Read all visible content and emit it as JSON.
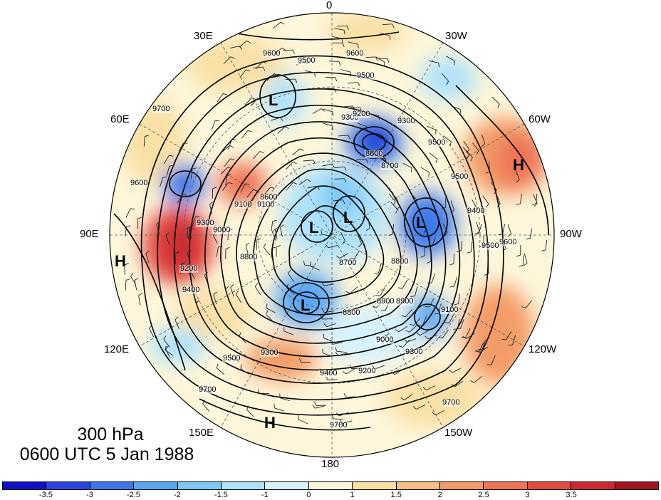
{
  "map": {
    "title_level": "300 hPa",
    "title_time": "0600 UTC 5 Jan 1988",
    "longitude_labels": [
      "0",
      "30W",
      "60W",
      "90W",
      "120W",
      "150W",
      "180",
      "150E",
      "120E",
      "90E",
      "60E",
      "30E"
    ],
    "contour_labels": [
      "9600",
      "9500",
      "9500",
      "9500",
      "9400",
      "9300",
      "9200",
      "9300",
      "9300",
      "9600",
      "9500",
      "9400",
      "9300",
      "9200",
      "9100",
      "9000",
      "8900",
      "8800",
      "8700",
      "8800",
      "8900",
      "9000",
      "9100",
      "9200",
      "9300",
      "9400",
      "9500",
      "9600",
      "9700",
      "9700",
      "9700",
      "9700",
      "9600",
      "9500",
      "8600",
      "8700",
      "8600",
      "8800",
      "9100"
    ],
    "systems": [
      {
        "label": "L",
        "name": "low-scandinavia"
      },
      {
        "label": "L",
        "name": "low-pole-left"
      },
      {
        "label": "L",
        "name": "low-pole-center"
      },
      {
        "label": "L",
        "name": "low-hudson"
      },
      {
        "label": "L",
        "name": "low-siberia"
      },
      {
        "label": "H",
        "name": "high-atlantic"
      },
      {
        "label": "H",
        "name": "high-asia"
      },
      {
        "label": "H",
        "name": "high-pacific"
      }
    ]
  },
  "colorbar": {
    "colors": [
      "#1010c8",
      "#2a44e0",
      "#3c78ea",
      "#5aa6f2",
      "#7ec8f8",
      "#aee2fb",
      "#d6f2fc",
      "#fdf6da",
      "#f9e0a6",
      "#f6c084",
      "#f39c68",
      "#ee7456",
      "#e34a42",
      "#cc2a30",
      "#a41420"
    ],
    "tick_labels": [
      "-3.5",
      "-3",
      "-2.5",
      "-2",
      "-1.5",
      "-1",
      "0",
      "1",
      "1.5",
      "2",
      "2.5",
      "3",
      "3.5"
    ]
  }
}
